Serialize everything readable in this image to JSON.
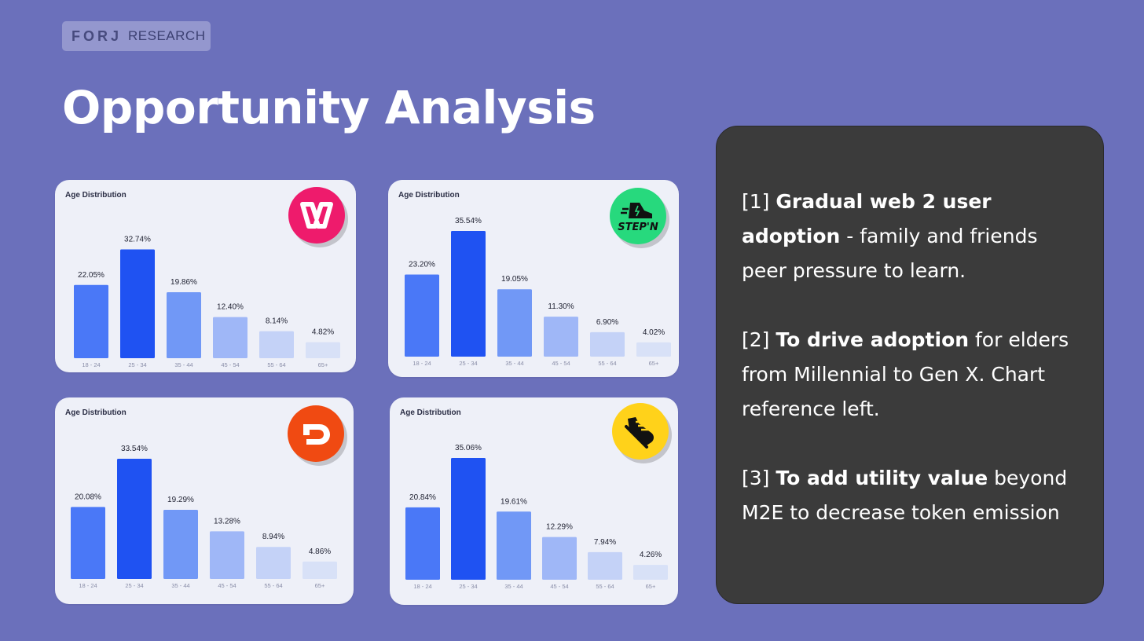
{
  "brand": {
    "logo_text": "FORJ",
    "label": "RESEARCH"
  },
  "page_title": "Opportunity Analysis",
  "chart_data": [
    {
      "type": "bar",
      "title": "Age Distribution",
      "logo": "wombat-logo-icon",
      "categories": [
        "18 - 24",
        "25 - 34",
        "35 - 44",
        "45 - 54",
        "55 - 64",
        "65+"
      ],
      "values": [
        22.05,
        32.74,
        19.86,
        12.4,
        8.14,
        4.82
      ],
      "labels": [
        "22.05%",
        "32.74%",
        "19.86%",
        "12.40%",
        "8.14%",
        "4.82%"
      ],
      "ylim": [
        0,
        35
      ]
    },
    {
      "type": "bar",
      "title": "Age Distribution",
      "logo": "stepn-logo-icon",
      "logo_text": "STEP'N",
      "categories": [
        "18 - 24",
        "25 - 34",
        "35 - 44",
        "45 - 54",
        "55 - 64",
        "65+"
      ],
      "values": [
        23.2,
        35.54,
        19.05,
        11.3,
        6.9,
        4.02
      ],
      "labels": [
        "23.20%",
        "35.54%",
        "19.05%",
        "11.30%",
        "6.90%",
        "4.02%"
      ],
      "ylim": [
        0,
        35.54
      ]
    },
    {
      "type": "bar",
      "title": "Age Distribution",
      "logo": "d-logo-icon",
      "categories": [
        "18 - 24",
        "25 - 34",
        "35 - 44",
        "45 - 54",
        "55 - 64",
        "65+"
      ],
      "values": [
        20.08,
        33.54,
        19.29,
        13.28,
        8.94,
        4.86
      ],
      "labels": [
        "20.08%",
        "33.54%",
        "19.29%",
        "13.28%",
        "8.94%",
        "4.86%"
      ],
      "ylim": [
        0,
        33.54
      ]
    },
    {
      "type": "bar",
      "title": "Age Distribution",
      "logo": "sneaker-logo-icon",
      "categories": [
        "18 - 24",
        "25 - 34",
        "35 - 44",
        "45 - 54",
        "55 - 64",
        "65+"
      ],
      "values": [
        20.84,
        35.06,
        19.61,
        12.29,
        7.94,
        4.26
      ],
      "labels": [
        "20.84%",
        "35.06%",
        "19.61%",
        "12.29%",
        "7.94%",
        "4.26%"
      ],
      "ylim": [
        0,
        35.06
      ]
    }
  ],
  "colors": {
    "bars": [
      "#4a78f7",
      "#1f52f2",
      "#7198f6",
      "#9fb7f7",
      "#c4d2f7",
      "#d8e1f7"
    ],
    "logos": [
      "#ee1b6c",
      "#27d97d",
      "#f04a12",
      "#ffd21a"
    ]
  },
  "notes": [
    {
      "prefix": "[1] ",
      "bold": "Gradual web 2 user adoption",
      "rest": " - family and friends peer pressure to learn."
    },
    {
      "prefix": "[2] ",
      "bold": "To drive adoption",
      "rest": " for elders from Millennial to Gen X. Chart reference left."
    },
    {
      "prefix": "[3] ",
      "bold": "To add utility value",
      "rest": " beyond M2E to decrease token emission"
    }
  ]
}
